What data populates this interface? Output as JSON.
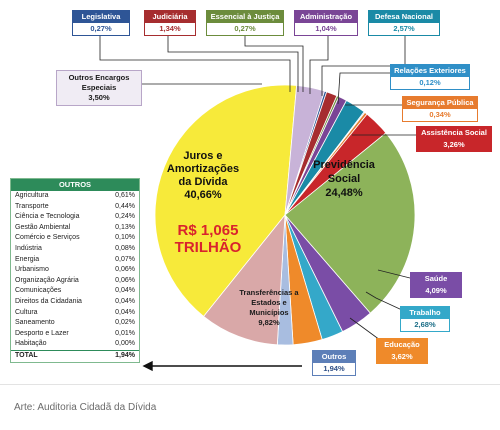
{
  "colors": {
    "juros": "#f7ea3a",
    "outros_encargos": "#c8b3d8",
    "previdencia": "#8db35a",
    "assistencia": "#c8262a",
    "seguranca": "#e77b2e",
    "relacoes": "#2f8fc7",
    "defesa": "#1a8aa6",
    "administracao": "#7a4596",
    "justica": "#6c8c3c",
    "judiciaria": "#a62d2f",
    "legislativa": "#2e5596",
    "saude": "#7a4da6",
    "trabalho": "#34a8c9",
    "educacao": "#ef8a2a",
    "transferencias": "#d9a8a8",
    "outros": "#a8bde0",
    "table_accent": "#2d8b5a"
  },
  "chart_data": {
    "type": "pie",
    "unit": "%",
    "slices": [
      {
        "key": "juros",
        "label": "Juros e Amortizações da Dívida",
        "value": 40.66
      },
      {
        "key": "outros_encargos",
        "label": "Outros Encargos Especiais",
        "value": 3.5
      },
      {
        "key": "legislativa",
        "label": "Legislativa",
        "value": 0.27
      },
      {
        "key": "judiciaria",
        "label": "Judiciária",
        "value": 1.34
      },
      {
        "key": "justica",
        "label": "Essencial à Justiça",
        "value": 0.27
      },
      {
        "key": "administracao",
        "label": "Administração",
        "value": 1.04
      },
      {
        "key": "defesa",
        "label": "Defesa Nacional",
        "value": 2.57
      },
      {
        "key": "relacoes",
        "label": "Relações Exteriores",
        "value": 0.12
      },
      {
        "key": "seguranca",
        "label": "Segurança Pública",
        "value": 0.34
      },
      {
        "key": "assistencia",
        "label": "Assistência Social",
        "value": 3.26
      },
      {
        "key": "previdencia",
        "label": "Previdência Social",
        "value": 24.48
      },
      {
        "key": "saude",
        "label": "Saúde",
        "value": 4.09
      },
      {
        "key": "trabalho",
        "label": "Trabalho",
        "value": 2.68
      },
      {
        "key": "educacao",
        "label": "Educação",
        "value": 3.62
      },
      {
        "key": "outros",
        "label": "Outros",
        "value": 1.94
      },
      {
        "key": "transferencias",
        "label": "Transferências a Estados e Municípios",
        "value": 9.82
      }
    ],
    "annotation": "R$ 1,065 TRILHÃO",
    "others_table": {
      "header": "OUTROS",
      "rows": [
        {
          "name": "Agricultura",
          "value": "0,61%"
        },
        {
          "name": "Transporte",
          "value": "0,44%"
        },
        {
          "name": "Ciência e Tecnologia",
          "value": "0,24%"
        },
        {
          "name": "Gestão Ambiental",
          "value": "0,13%"
        },
        {
          "name": "Comércio e Serviços",
          "value": "0,10%"
        },
        {
          "name": "Indústria",
          "value": "0,08%"
        },
        {
          "name": "Energia",
          "value": "0,07%"
        },
        {
          "name": "Urbanismo",
          "value": "0,06%"
        },
        {
          "name": "Organização Agrária",
          "value": "0,06%"
        },
        {
          "name": "Comunicações",
          "value": "0,04%"
        },
        {
          "name": "Direitos da Cidadania",
          "value": "0,04%"
        },
        {
          "name": "Cultura",
          "value": "0,04%"
        },
        {
          "name": "Saneamento",
          "value": "0,02%"
        },
        {
          "name": "Desporto e Lazer",
          "value": "0,01%"
        },
        {
          "name": "Habitação",
          "value": "0,00%"
        }
      ],
      "total": {
        "name": "TOTAL",
        "value": "1,94%"
      }
    }
  },
  "labels": {
    "legislativa": {
      "title": "Legislativa",
      "value": "0,27%"
    },
    "judiciaria": {
      "title": "Judiciária",
      "value": "1,34%"
    },
    "justica": {
      "title": "Essencial à Justiça",
      "value": "0,27%"
    },
    "administracao": {
      "title": "Administração",
      "value": "1,04%"
    },
    "defesa": {
      "title": "Defesa Nacional",
      "value": "2,57%"
    },
    "relacoes": {
      "title": "Relações Exteriores",
      "value": "0,12%"
    },
    "seguranca": {
      "title": "Segurança Pública",
      "value": "0,34%"
    },
    "assistencia": {
      "title": "Assistência Social",
      "value": "3,26%"
    },
    "saude": {
      "title": "Saúde",
      "value": "4,09%"
    },
    "trabalho": {
      "title": "Trabalho",
      "value": "2,68%"
    },
    "educacao": {
      "title": "Educação",
      "value": "3,62%"
    },
    "outros": {
      "title": "Outros",
      "value": "1,94%"
    },
    "outros_encargos": {
      "line1": "Outros Encargos",
      "line2": "Especiais",
      "value": "3,50%"
    },
    "juros": {
      "line1": "Juros e",
      "line2": "Amortizações",
      "line3": "da Dívida",
      "value": "40,66%",
      "amount_line1": "R$ 1,065",
      "amount_line2": "TRILHÃO"
    },
    "previdencia": {
      "line1": "Previdência",
      "line2": "Social",
      "value": "24,48%"
    },
    "transferencias": {
      "line1": "Transferências a",
      "line2": "Estados e",
      "line3": "Municípios",
      "value": "9,82%"
    }
  },
  "caption": "Arte: Auditoria Cidadã da Dívida"
}
